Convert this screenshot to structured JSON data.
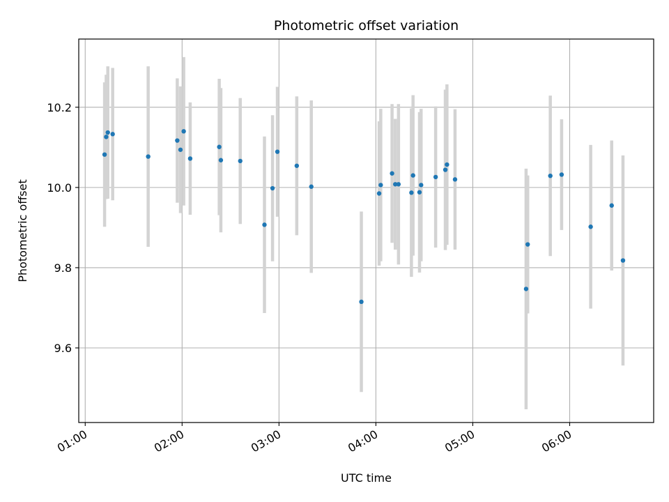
{
  "chart_data": {
    "type": "scatter",
    "title": "Photometric offset variation",
    "xlabel": "UTC time",
    "ylabel": "Photometric offset",
    "xlim": [
      "00:56",
      "06:52"
    ],
    "ylim": [
      9.414,
      10.37
    ],
    "xticks": [
      "01:00",
      "02:00",
      "03:00",
      "04:00",
      "05:00",
      "06:00"
    ],
    "yticks": [
      9.6,
      9.8,
      10.0,
      10.2
    ],
    "ytick_labels": [
      "9.6",
      "9.8",
      "10.0",
      "10.2"
    ],
    "grid": true,
    "colors": {
      "point": "#1f77b4",
      "errorbar": "#d3d3d3",
      "grid": "#b0b0b0"
    },
    "points": [
      {
        "t": "01:12",
        "y": 10.082,
        "err": 0.18
      },
      {
        "t": "01:13",
        "y": 10.126,
        "err": 0.155
      },
      {
        "t": "01:14",
        "y": 10.137,
        "err": 0.165
      },
      {
        "t": "01:17",
        "y": 10.133,
        "err": 0.165
      },
      {
        "t": "01:39",
        "y": 10.077,
        "err": 0.225
      },
      {
        "t": "01:57",
        "y": 10.117,
        "err": 0.155
      },
      {
        "t": "01:59",
        "y": 10.094,
        "err": 0.158
      },
      {
        "t": "02:01",
        "y": 10.14,
        "err": 0.185
      },
      {
        "t": "02:05",
        "y": 10.072,
        "err": 0.14
      },
      {
        "t": "02:23",
        "y": 10.101,
        "err": 0.17
      },
      {
        "t": "02:24",
        "y": 10.068,
        "err": 0.18
      },
      {
        "t": "02:36",
        "y": 10.066,
        "err": 0.157
      },
      {
        "t": "02:51",
        "y": 9.907,
        "err": 0.22
      },
      {
        "t": "02:56",
        "y": 9.998,
        "err": 0.182
      },
      {
        "t": "02:59",
        "y": 10.089,
        "err": 0.162
      },
      {
        "t": "03:11",
        "y": 10.054,
        "err": 0.173
      },
      {
        "t": "03:20",
        "y": 10.002,
        "err": 0.215
      },
      {
        "t": "03:51",
        "y": 9.715,
        "err": 0.225
      },
      {
        "t": "04:02",
        "y": 9.985,
        "err": 0.18
      },
      {
        "t": "04:03",
        "y": 10.006,
        "err": 0.19
      },
      {
        "t": "04:10",
        "y": 10.035,
        "err": 0.173
      },
      {
        "t": "04:12",
        "y": 10.008,
        "err": 0.163
      },
      {
        "t": "04:14",
        "y": 10.008,
        "err": 0.2
      },
      {
        "t": "04:22",
        "y": 9.987,
        "err": 0.21
      },
      {
        "t": "04:23",
        "y": 10.03,
        "err": 0.2
      },
      {
        "t": "04:27",
        "y": 9.988,
        "err": 0.2
      },
      {
        "t": "04:28",
        "y": 10.006,
        "err": 0.19
      },
      {
        "t": "04:37",
        "y": 10.026,
        "err": 0.176
      },
      {
        "t": "04:43",
        "y": 10.044,
        "err": 0.2
      },
      {
        "t": "04:44",
        "y": 10.057,
        "err": 0.2
      },
      {
        "t": "04:49",
        "y": 10.02,
        "err": 0.175
      },
      {
        "t": "05:33",
        "y": 9.747,
        "err": 0.3
      },
      {
        "t": "05:34",
        "y": 9.858,
        "err": 0.172
      },
      {
        "t": "05:48",
        "y": 10.029,
        "err": 0.2
      },
      {
        "t": "05:55",
        "y": 10.032,
        "err": 0.138
      },
      {
        "t": "06:13",
        "y": 9.902,
        "err": 0.204
      },
      {
        "t": "06:26",
        "y": 9.955,
        "err": 0.162
      },
      {
        "t": "06:33",
        "y": 9.818,
        "err": 0.262
      }
    ]
  }
}
